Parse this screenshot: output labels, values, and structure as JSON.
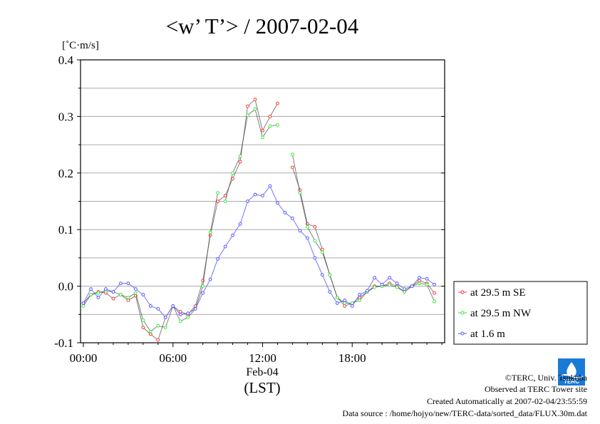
{
  "chart_data": {
    "type": "line",
    "title": "<w’ T’> / 2007-02-04",
    "ylabel": "[˚C·m/s]",
    "xlabel": "(LST)",
    "date_label": "Feb-04",
    "x_tick_labels": [
      "00:00",
      "06:00",
      "12:00",
      "18:00"
    ],
    "x_ticks_hours": [
      0,
      6,
      12,
      18
    ],
    "y_tick_labels": [
      "0.4",
      "0.3",
      "0.2",
      "0.1",
      "0.0",
      "-0.1"
    ],
    "y_ticks": [
      0.4,
      0.3,
      0.2,
      0.1,
      0.0,
      -0.1
    ],
    "xlim_hours": [
      0,
      24
    ],
    "ylim": [
      -0.1,
      0.4
    ],
    "grid": "horizontal",
    "legend_position": "right",
    "series": [
      {
        "name": "at 29.5 m SE",
        "color": "#ff3333",
        "x_hours": [
          0,
          0.5,
          1,
          1.5,
          2,
          2.5,
          3,
          3.5,
          4,
          4.5,
          5,
          5.5,
          6,
          6.5,
          7,
          7.5,
          8,
          8.5,
          9,
          9.5,
          10,
          10.5,
          11,
          11.5,
          12,
          12.5,
          13,
          null,
          14,
          14.5,
          15,
          15.5,
          16,
          16.5,
          17,
          17.5,
          18,
          18.5,
          19,
          19.5,
          20,
          20.5,
          21,
          21.5,
          22,
          22.5,
          23,
          23.5
        ],
        "values": [
          -0.03,
          -0.015,
          -0.01,
          -0.012,
          -0.022,
          -0.015,
          -0.025,
          -0.017,
          -0.073,
          -0.085,
          -0.095,
          -0.055,
          -0.035,
          -0.045,
          -0.05,
          -0.035,
          0.01,
          0.09,
          0.15,
          0.16,
          0.19,
          0.22,
          0.318,
          0.33,
          0.275,
          0.3,
          0.323,
          null,
          0.21,
          0.17,
          0.11,
          0.105,
          0.065,
          0.02,
          -0.02,
          -0.035,
          -0.03,
          -0.02,
          -0.01,
          0,
          0,
          0.005,
          0,
          -0.01,
          0,
          0.01,
          0.005,
          -0.012
        ]
      },
      {
        "name": "at 29.5 m NW",
        "color": "#33ee33",
        "x_hours": [
          0,
          0.5,
          1,
          1.5,
          2,
          2.5,
          3,
          3.5,
          4,
          4.5,
          5,
          5.5,
          6,
          6.5,
          7,
          7.5,
          8,
          8.5,
          9,
          null,
          9.5,
          10,
          10.5,
          11,
          11.5,
          12,
          12.5,
          13,
          null,
          14,
          14.5,
          15,
          15.5,
          16,
          16.5,
          17,
          17.5,
          18,
          18.5,
          19,
          19.5,
          20,
          20.5,
          21,
          21.5,
          22,
          22.5,
          23,
          23.5
        ],
        "values": [
          -0.035,
          -0.015,
          -0.012,
          -0.008,
          -0.01,
          -0.015,
          -0.02,
          -0.012,
          -0.06,
          -0.08,
          -0.07,
          -0.073,
          -0.035,
          -0.062,
          -0.055,
          -0.04,
          0,
          0.095,
          0.165,
          null,
          0.15,
          0.2,
          0.23,
          0.302,
          0.313,
          0.263,
          0.283,
          0.285,
          null,
          0.233,
          0.165,
          0.105,
          0.08,
          0.06,
          0.02,
          -0.02,
          -0.03,
          -0.03,
          -0.025,
          -0.01,
          -0.002,
          0,
          0.002,
          -0.002,
          -0.01,
          0,
          0.005,
          0.003,
          -0.027
        ]
      },
      {
        "name": "at 1.6 m",
        "color": "#5555ff",
        "x_hours": [
          0,
          0.5,
          1,
          1.5,
          2,
          2.5,
          3,
          3.5,
          4,
          4.5,
          5,
          5.5,
          6,
          6.5,
          7,
          7.5,
          8,
          8.5,
          9,
          9.5,
          10,
          10.5,
          11,
          11.5,
          12,
          12.5,
          13,
          13.5,
          14,
          14.5,
          15,
          15.5,
          16,
          16.5,
          17,
          17.5,
          18,
          18.5,
          19,
          19.5,
          20,
          20.5,
          21,
          21.5,
          22,
          22.5,
          23,
          23.5
        ],
        "values": [
          -0.03,
          -0.005,
          -0.02,
          -0.005,
          -0.01,
          0.005,
          0.005,
          -0.005,
          -0.015,
          -0.035,
          -0.04,
          -0.055,
          -0.035,
          -0.05,
          -0.048,
          -0.04,
          -0.012,
          0.012,
          0.048,
          0.07,
          0.09,
          0.11,
          0.15,
          0.162,
          0.16,
          0.177,
          0.147,
          0.13,
          0.12,
          0.098,
          0.085,
          0.05,
          0.02,
          -0.01,
          -0.03,
          -0.025,
          -0.035,
          -0.015,
          -0.008,
          0.015,
          0.003,
          0.015,
          0.005,
          -0.005,
          0,
          0.015,
          0.013,
          0.003
        ]
      }
    ]
  },
  "credits": {
    "copyright": "©TERC, Univ. Tsukuba",
    "observed": "Observed at TERC Tower site",
    "created": "Created Automatically at 2007-02-04/23:55:59",
    "source": "Data source : /home/hojyo/new/TERC-data/sorted_data/FLUX.30m.dat"
  },
  "logo_text": "TERC",
  "colors": {
    "grid": "#aaaaaa",
    "series_line": "#444444",
    "logo_blue": "#1a7bd6"
  }
}
